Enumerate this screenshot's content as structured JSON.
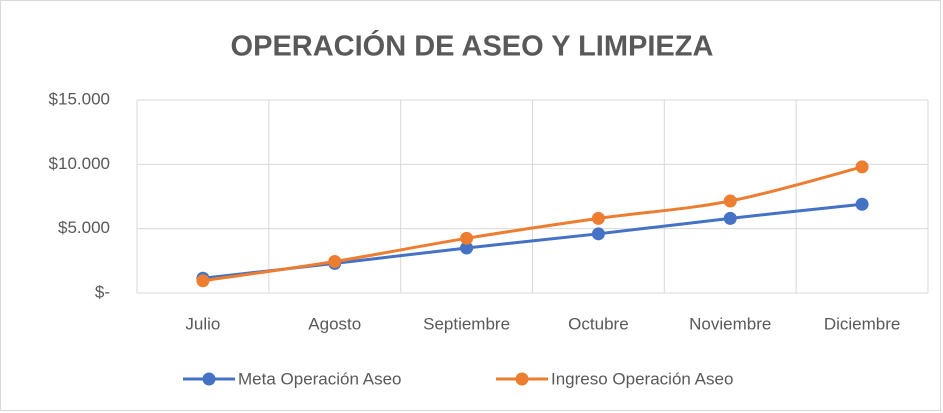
{
  "chart_data": {
    "type": "line",
    "title": "OPERACIÓN DE ASEO Y LIMPIEZA",
    "categories": [
      "Julio",
      "Agosto",
      "Septiembre",
      "Octubre",
      "Noviembre",
      "Diciembre"
    ],
    "series": [
      {
        "name": "Meta Operación Aseo",
        "color": "#4472c4",
        "values": [
          1150,
          2300,
          3500,
          4600,
          5800,
          6900
        ]
      },
      {
        "name": "Ingreso Operación Aseo",
        "color": "#ed7d31",
        "values": [
          950,
          2450,
          4250,
          5800,
          7150,
          9800
        ]
      }
    ],
    "ylim": [
      0,
      15000
    ],
    "yticks": [
      {
        "value": 0,
        "label": "$-"
      },
      {
        "value": 5000,
        "label": "$5.000"
      },
      {
        "value": 10000,
        "label": "$10.000"
      },
      {
        "value": 15000,
        "label": "$15.000"
      }
    ],
    "grid": true,
    "smooth": true,
    "legend": "bottom"
  }
}
